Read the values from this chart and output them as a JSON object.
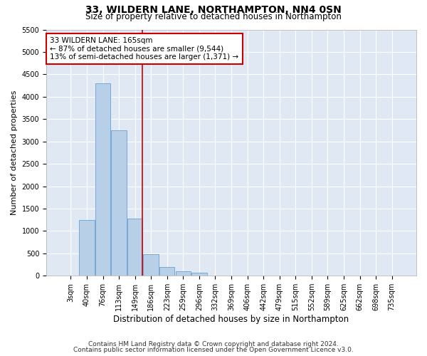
{
  "title": "33, WILDERN LANE, NORTHAMPTON, NN4 0SN",
  "subtitle": "Size of property relative to detached houses in Northampton",
  "xlabel": "Distribution of detached houses by size in Northampton",
  "ylabel": "Number of detached properties",
  "categories": [
    "3sqm",
    "40sqm",
    "76sqm",
    "113sqm",
    "149sqm",
    "186sqm",
    "223sqm",
    "259sqm",
    "296sqm",
    "332sqm",
    "369sqm",
    "406sqm",
    "442sqm",
    "479sqm",
    "515sqm",
    "552sqm",
    "589sqm",
    "625sqm",
    "662sqm",
    "698sqm",
    "735sqm"
  ],
  "values": [
    0,
    1250,
    4300,
    3250,
    1280,
    480,
    200,
    100,
    70,
    0,
    0,
    0,
    0,
    0,
    0,
    0,
    0,
    0,
    0,
    0,
    0
  ],
  "bar_color": "#b8cfe8",
  "bar_edge_color": "#6a9fd8",
  "annotation_text": "33 WILDERN LANE: 165sqm\n← 87% of detached houses are smaller (9,544)\n13% of semi-detached houses are larger (1,371) →",
  "annotation_box_color": "#ffffff",
  "annotation_box_edge": "#cc0000",
  "ylim": [
    0,
    5500
  ],
  "yticks": [
    0,
    500,
    1000,
    1500,
    2000,
    2500,
    3000,
    3500,
    4000,
    4500,
    5000,
    5500
  ],
  "footer1": "Contains HM Land Registry data © Crown copyright and database right 2024.",
  "footer2": "Contains public sector information licensed under the Open Government Licence v3.0.",
  "bg_color": "#ffffff",
  "plot_bg_color": "#e0e8f4",
  "grid_color": "#ffffff",
  "title_fontsize": 10,
  "subtitle_fontsize": 8.5,
  "xlabel_fontsize": 8.5,
  "ylabel_fontsize": 8,
  "tick_fontsize": 7,
  "annotation_fontsize": 7.5,
  "footer_fontsize": 6.5
}
